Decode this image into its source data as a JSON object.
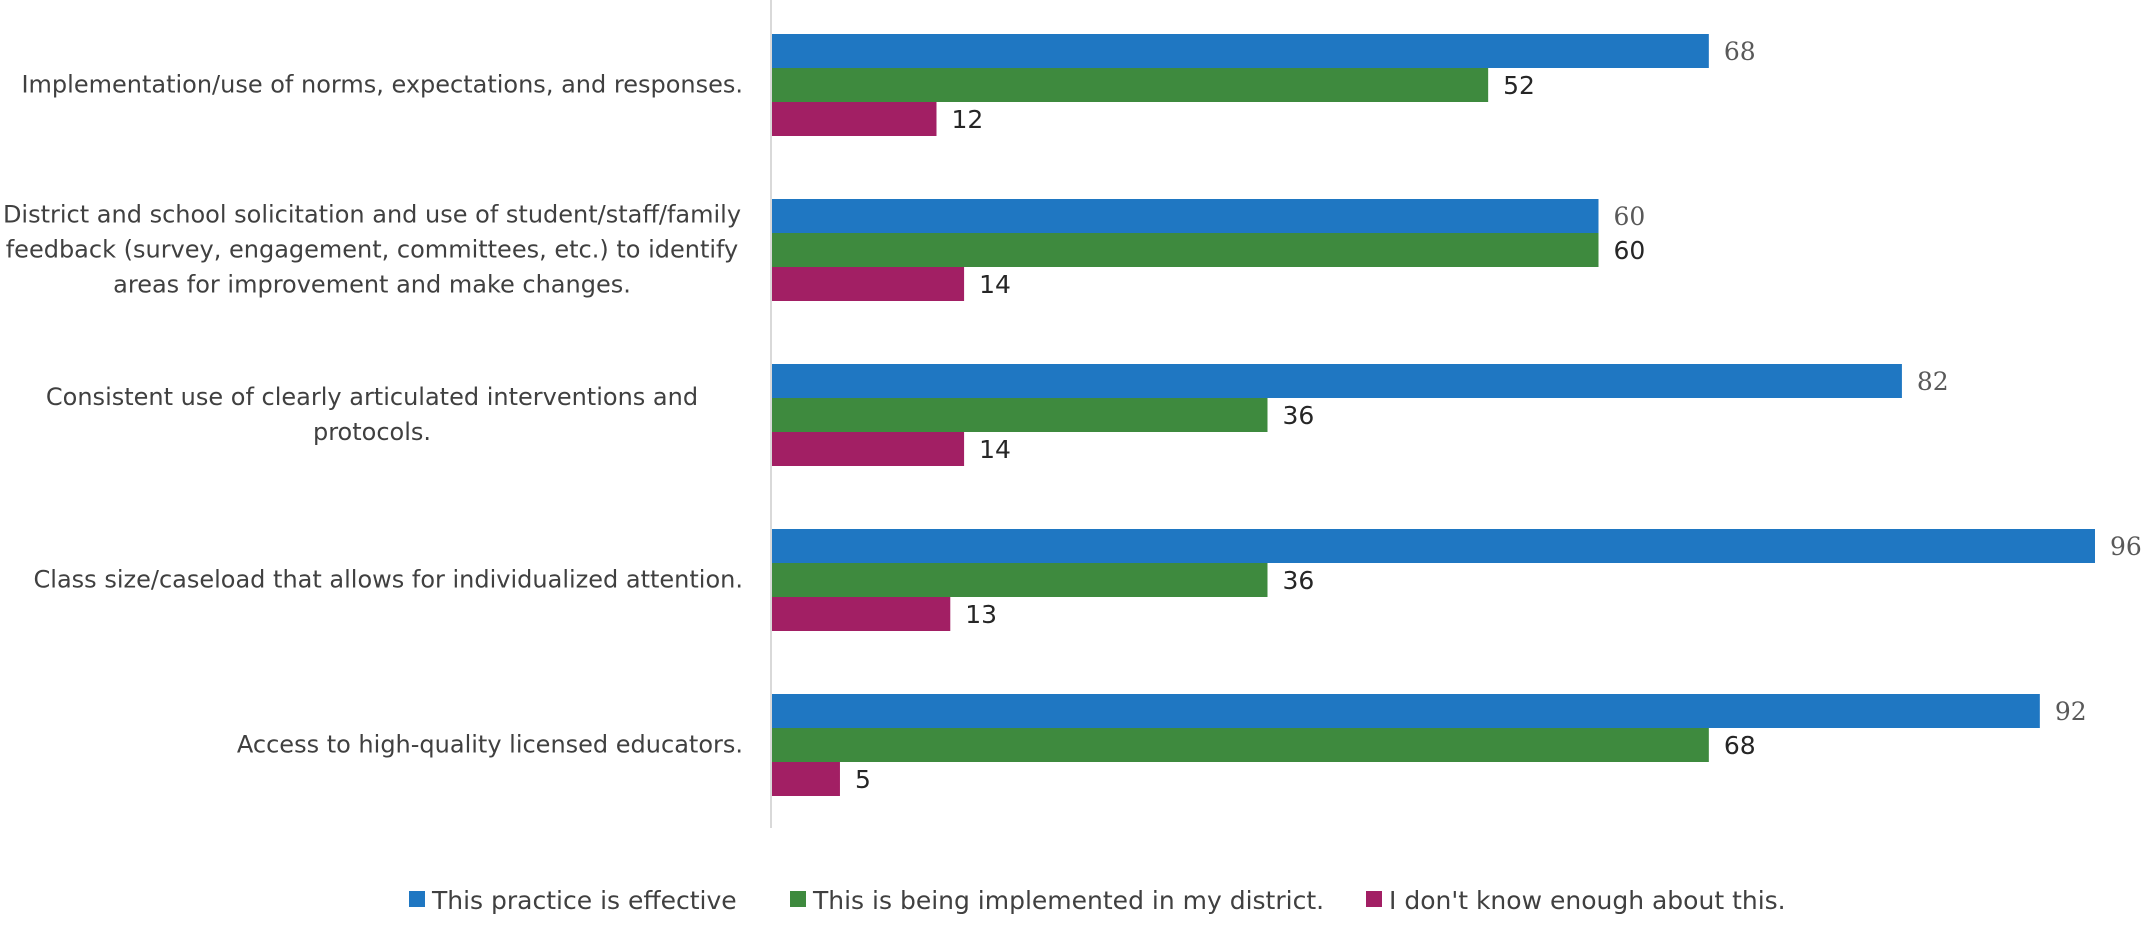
{
  "chart_data": {
    "type": "bar",
    "orientation": "horizontal",
    "categories": [
      "Implementation/use of norms, expectations, and responses.",
      "District and school solicitation and use of student/staff/family feedback (survey, engagement, committees, etc.) to identify areas for improvement and make changes.",
      "Consistent use of clearly articulated interventions and protocols.",
      "Class size/caseload that allows for individualized attention.",
      "Access to high-quality licensed educators."
    ],
    "category_lines": [
      [
        "Implementation/use of norms, expectations, and responses."
      ],
      [
        "District and school solicitation and use of student/staff/family",
        "feedback (survey, engagement, committees, etc.) to identify",
        "areas for improvement and make changes."
      ],
      [
        "Consistent use of clearly articulated interventions and",
        "protocols."
      ],
      [
        "Class size/caseload that allows for individualized attention."
      ],
      [
        "Access to high-quality licensed educators."
      ]
    ],
    "series": [
      {
        "name": "This practice is effective",
        "color": "#1f77c2",
        "values": [
          68,
          60,
          82,
          96,
          92
        ]
      },
      {
        "name": "This is being implemented in my district.",
        "color": "#3e8a3e",
        "values": [
          52,
          60,
          36,
          36,
          68
        ]
      },
      {
        "name": "I don't know enough about this.",
        "color": "#a21f64",
        "values": [
          12,
          14,
          14,
          13,
          5
        ]
      }
    ],
    "xlim": [
      0,
      96
    ],
    "grid": false,
    "legend_position": "bottom",
    "title": "",
    "xlabel": "",
    "ylabel": ""
  }
}
